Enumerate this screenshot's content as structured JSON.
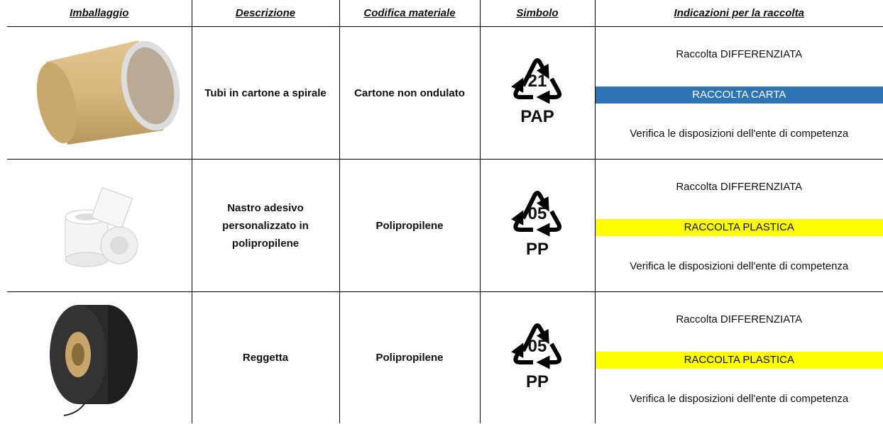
{
  "header": {
    "columns": [
      "Imballaggio",
      "Descrizione",
      "Codifica materiale",
      "Simbolo",
      "Indicazioni per la raccolta"
    ]
  },
  "rows": [
    {
      "description": "Tubi in cartone a spirale",
      "material": "Cartone non ondulato",
      "symbol": {
        "code": "21",
        "abbreviation": "PAP"
      },
      "collection": {
        "line1": "Raccolta DIFFERENZIATA",
        "band": "RACCOLTA CARTA",
        "band_color": "#2e75b6",
        "note": "Verifica le disposizioni dell'ente di competenza"
      }
    },
    {
      "description": "Nastro adesivo personalizzato in polipropilene",
      "material": "Polipropilene",
      "symbol": {
        "code": "05",
        "abbreviation": "PP"
      },
      "collection": {
        "line1": "Raccolta DIFFERENZIATA",
        "band": "RACCOLTA PLASTICA",
        "band_color": "#ffff00",
        "note": "Verifica le disposizioni dell'ente di competenza"
      }
    },
    {
      "description": "Reggetta",
      "material": "Polipropilene",
      "symbol": {
        "code": "05",
        "abbreviation": "PP"
      },
      "collection": {
        "line1": "Raccolta DIFFERENZIATA",
        "band": "RACCOLTA PLASTICA",
        "band_color": "#ffff00",
        "note": "Verifica le disposizioni dell'ente di competenza"
      }
    }
  ]
}
